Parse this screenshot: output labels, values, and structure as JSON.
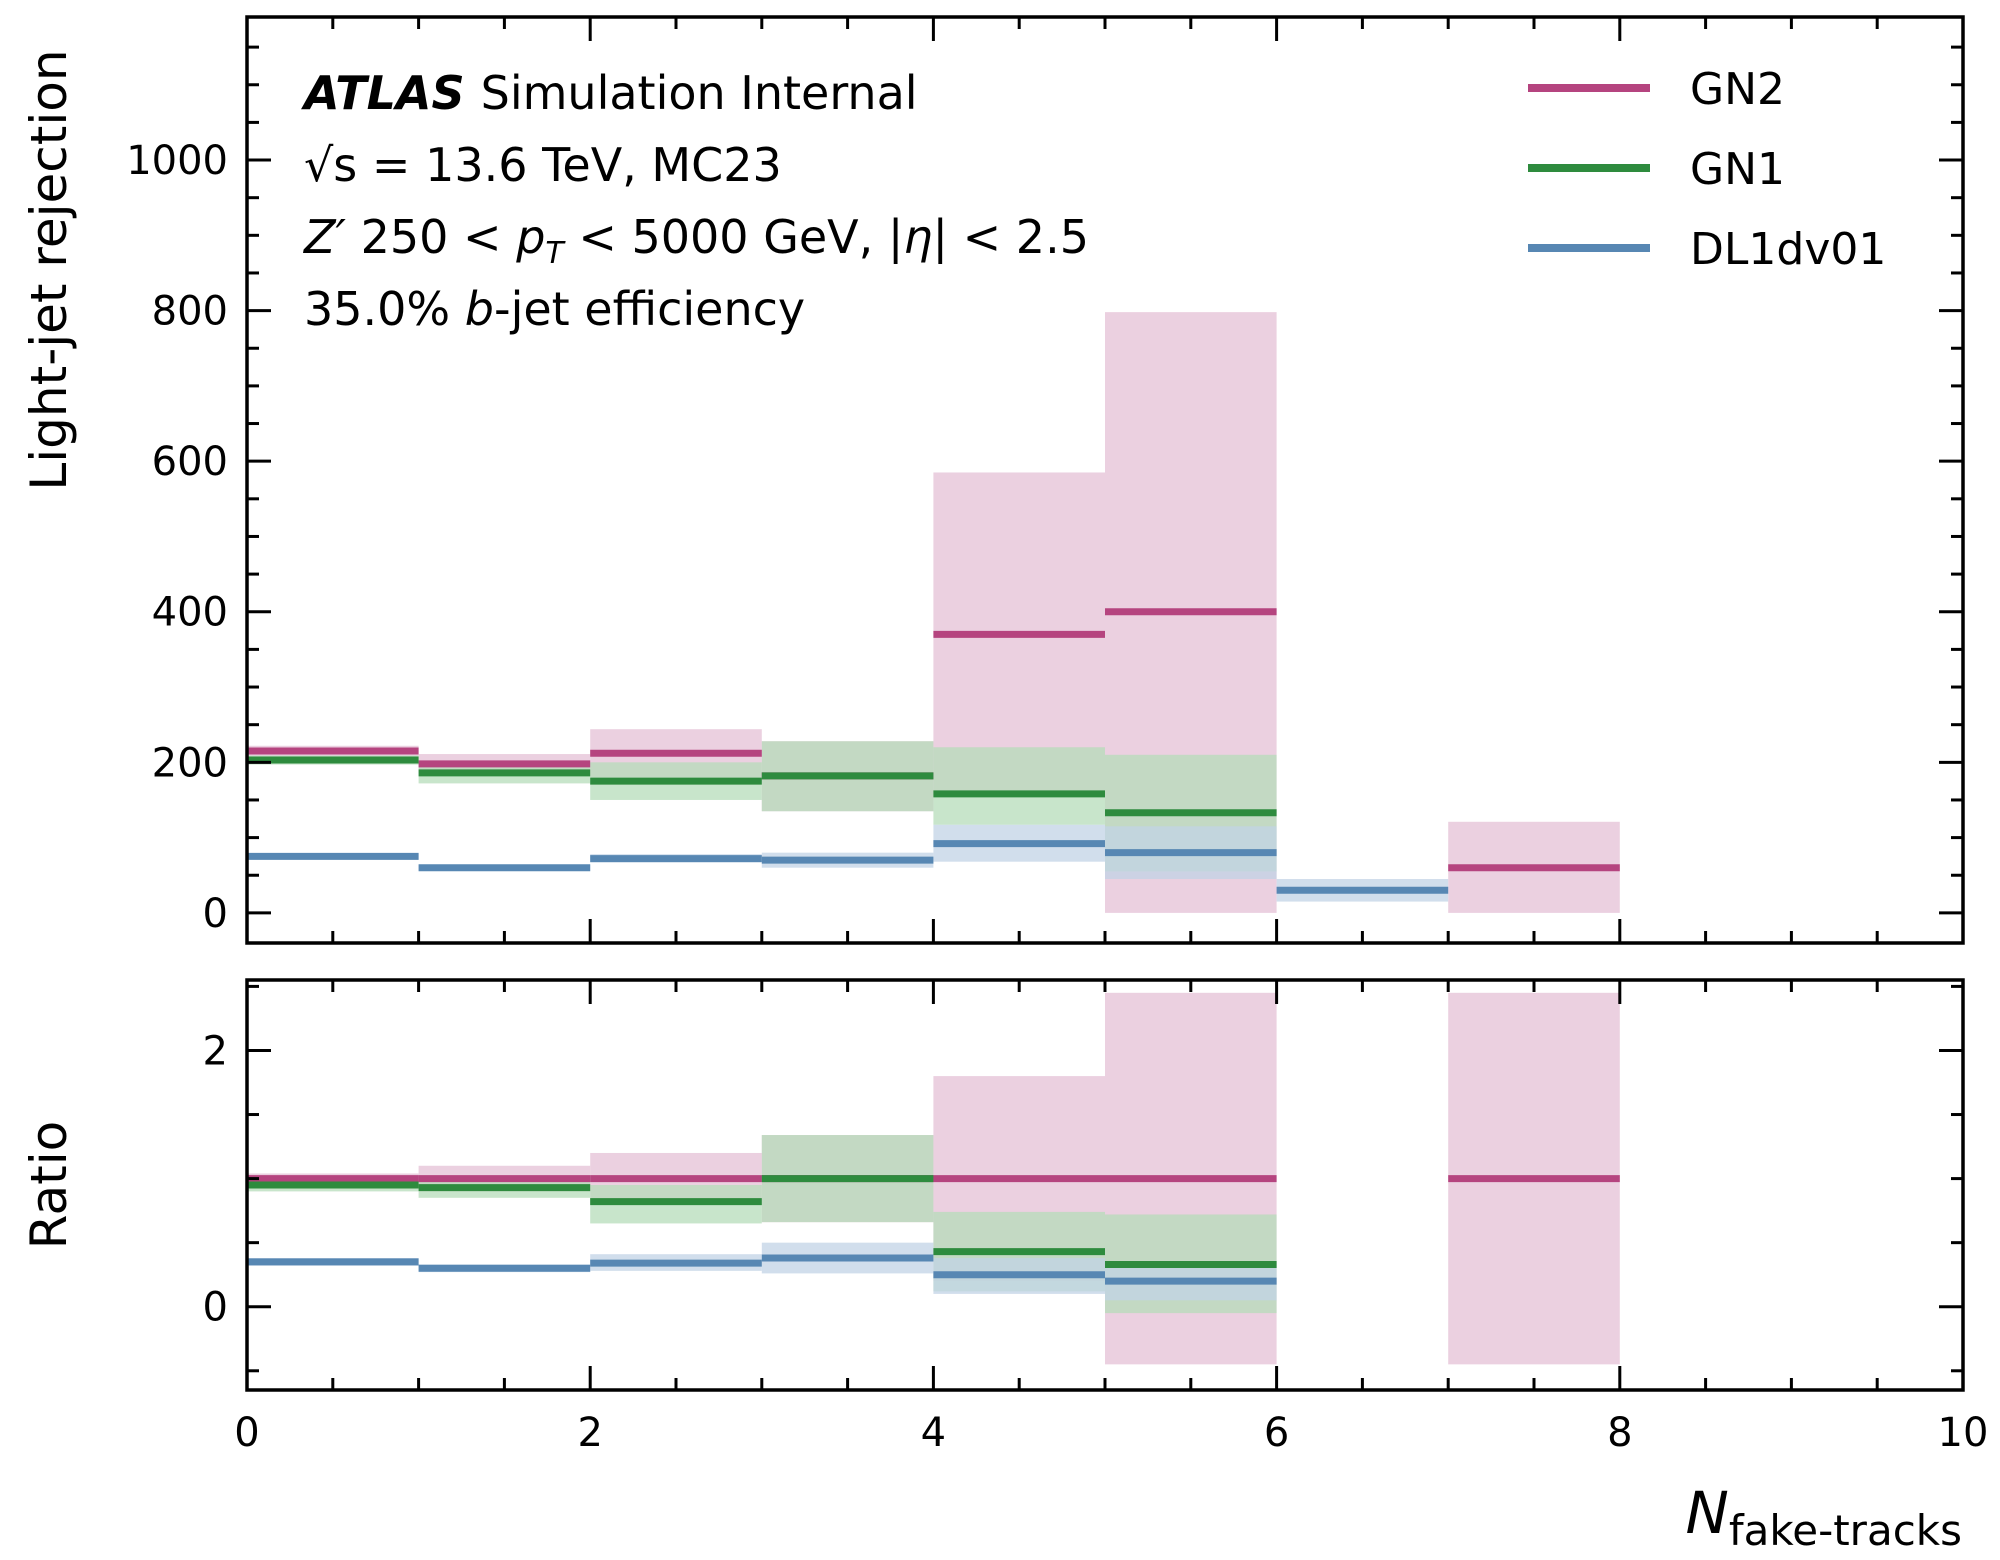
{
  "chart_data": {
    "type": "step-band",
    "annotation": {
      "experiment": "ATLAS",
      "status": "Simulation Internal",
      "line2_sqrt": "√s",
      "line2_rest": " = 13.6 TeV, MC23",
      "line3_zp": "Z′",
      "line3_a": " 250 < ",
      "line3_pt": "p",
      "line3_pt_sub": "T",
      "line3_b": " < 5000 GeV, |",
      "line3_eta": "η",
      "line3_c": "| < 2.5",
      "line4_a": "35.0% ",
      "line4_b": "b",
      "line4_c": "-jet efficiency"
    },
    "xlabel_main": "N",
    "xlabel_sub": "fake-tracks",
    "xlim": [
      0,
      10
    ],
    "xticks": [
      0,
      2,
      4,
      6,
      8,
      10
    ],
    "top": {
      "ylabel": "Light-jet rejection",
      "ylim": [
        -40,
        1190
      ],
      "yticks": [
        0,
        200,
        400,
        600,
        800,
        1000
      ]
    },
    "bottom": {
      "ylabel": "Ratio",
      "ylim": [
        -0.65,
        2.55
      ],
      "yticks": [
        0,
        2
      ]
    },
    "series": [
      {
        "name": "GN2",
        "color": "#b5447f",
        "band_color": "#e4c0d6",
        "top": [
          {
            "x0": 0,
            "x1": 1,
            "y": 215,
            "lo": 208,
            "hi": 222
          },
          {
            "x0": 1,
            "x1": 2,
            "y": 198,
            "lo": 185,
            "hi": 211
          },
          {
            "x0": 2,
            "x1": 3,
            "y": 212,
            "lo": 180,
            "hi": 244
          },
          {
            "x0": 3,
            "x1": 4,
            "y": 182,
            "lo": 135,
            "hi": 228
          },
          {
            "x0": 4,
            "x1": 5,
            "y": 370,
            "lo": 155,
            "hi": 585
          },
          {
            "x0": 5,
            "x1": 6,
            "y": 400,
            "lo": 0,
            "hi": 798
          },
          {
            "x0": 7,
            "x1": 8,
            "y": 60,
            "lo": 0,
            "hi": 121
          }
        ],
        "ratio": [
          {
            "x0": 0,
            "x1": 1,
            "y": 1.0,
            "lo": 0.96,
            "hi": 1.04
          },
          {
            "x0": 1,
            "x1": 2,
            "y": 1.0,
            "lo": 0.9,
            "hi": 1.1
          },
          {
            "x0": 2,
            "x1": 3,
            "y": 1.0,
            "lo": 0.8,
            "hi": 1.2
          },
          {
            "x0": 3,
            "x1": 4,
            "y": 1.0,
            "lo": 0.66,
            "hi": 1.34
          },
          {
            "x0": 4,
            "x1": 5,
            "y": 1.0,
            "lo": 0.2,
            "hi": 1.8
          },
          {
            "x0": 5,
            "x1": 6,
            "y": 1.0,
            "lo": -0.45,
            "hi": 2.45
          },
          {
            "x0": 7,
            "x1": 8,
            "y": 1.0,
            "lo": -0.45,
            "hi": 2.45
          }
        ]
      },
      {
        "name": "GN1",
        "color": "#2e8b3e",
        "band_color": "#b5dcb9",
        "top": [
          {
            "x0": 0,
            "x1": 1,
            "y": 203,
            "lo": 197,
            "hi": 209
          },
          {
            "x0": 1,
            "x1": 2,
            "y": 186,
            "lo": 172,
            "hi": 200
          },
          {
            "x0": 2,
            "x1": 3,
            "y": 175,
            "lo": 150,
            "hi": 200
          },
          {
            "x0": 3,
            "x1": 4,
            "y": 182,
            "lo": 135,
            "hi": 228
          },
          {
            "x0": 4,
            "x1": 5,
            "y": 158,
            "lo": 117,
            "hi": 220
          },
          {
            "x0": 5,
            "x1": 6,
            "y": 133,
            "lo": 55,
            "hi": 210
          }
        ],
        "ratio": [
          {
            "x0": 0,
            "x1": 1,
            "y": 0.95,
            "lo": 0.9,
            "hi": 1.0
          },
          {
            "x0": 1,
            "x1": 2,
            "y": 0.93,
            "lo": 0.85,
            "hi": 1.02
          },
          {
            "x0": 2,
            "x1": 3,
            "y": 0.82,
            "lo": 0.65,
            "hi": 0.95
          },
          {
            "x0": 3,
            "x1": 4,
            "y": 1.0,
            "lo": 0.66,
            "hi": 1.34
          },
          {
            "x0": 4,
            "x1": 5,
            "y": 0.43,
            "lo": 0.12,
            "hi": 0.74
          },
          {
            "x0": 5,
            "x1": 6,
            "y": 0.33,
            "lo": -0.05,
            "hi": 0.72
          }
        ]
      },
      {
        "name": "DL1dv01",
        "color": "#5787b3",
        "band_color": "#c2d3e6",
        "top": [
          {
            "x0": 0,
            "x1": 1,
            "y": 75,
            "lo": 71,
            "hi": 79
          },
          {
            "x0": 1,
            "x1": 2,
            "y": 60,
            "lo": 56,
            "hi": 64
          },
          {
            "x0": 2,
            "x1": 3,
            "y": 72,
            "lo": 67,
            "hi": 78
          },
          {
            "x0": 3,
            "x1": 4,
            "y": 70,
            "lo": 60,
            "hi": 80
          },
          {
            "x0": 4,
            "x1": 5,
            "y": 92,
            "lo": 68,
            "hi": 117
          },
          {
            "x0": 5,
            "x1": 6,
            "y": 80,
            "lo": 45,
            "hi": 115
          },
          {
            "x0": 6,
            "x1": 7,
            "y": 30,
            "lo": 15,
            "hi": 45
          }
        ],
        "ratio": [
          {
            "x0": 0,
            "x1": 1,
            "y": 0.35,
            "lo": 0.32,
            "hi": 0.38
          },
          {
            "x0": 1,
            "x1": 2,
            "y": 0.3,
            "lo": 0.27,
            "hi": 0.33
          },
          {
            "x0": 2,
            "x1": 3,
            "y": 0.34,
            "lo": 0.28,
            "hi": 0.41
          },
          {
            "x0": 3,
            "x1": 4,
            "y": 0.38,
            "lo": 0.26,
            "hi": 0.5
          },
          {
            "x0": 4,
            "x1": 5,
            "y": 0.25,
            "lo": 0.1,
            "hi": 0.38
          },
          {
            "x0": 5,
            "x1": 6,
            "y": 0.2,
            "lo": 0.05,
            "hi": 0.35
          }
        ]
      }
    ]
  }
}
